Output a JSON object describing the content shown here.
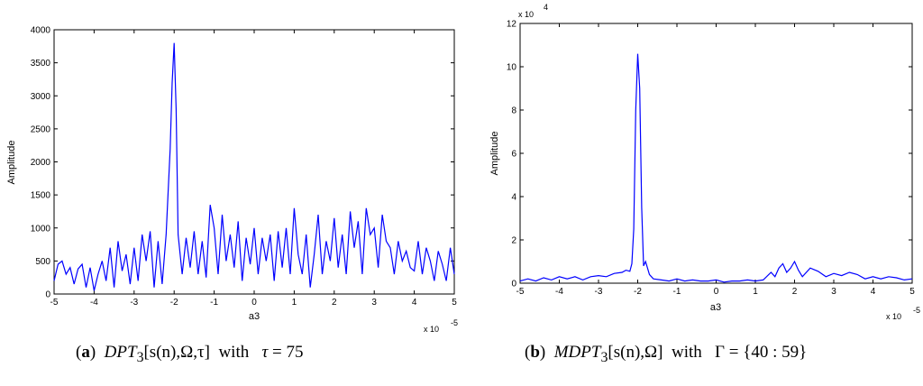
{
  "chart_data": [
    {
      "type": "line",
      "panel": "a",
      "xlabel": "a3",
      "ylabel": "Amplitude",
      "xlim": [
        -5,
        5
      ],
      "ylim": [
        0,
        4000
      ],
      "x_ticks": [
        -5,
        -4,
        -3,
        -2,
        -1,
        0,
        1,
        2,
        3,
        4,
        5
      ],
      "y_ticks": [
        0,
        500,
        1000,
        1500,
        2000,
        2500,
        3000,
        3500,
        4000
      ],
      "x_multiplier": "x 10",
      "x_exponent": "-5",
      "color": "#0000ff",
      "series": [
        {
          "name": "DPT3",
          "x": [
            -5.0,
            -4.9,
            -4.8,
            -4.7,
            -4.6,
            -4.5,
            -4.4,
            -4.3,
            -4.2,
            -4.1,
            -4.0,
            -3.9,
            -3.8,
            -3.7,
            -3.6,
            -3.5,
            -3.4,
            -3.3,
            -3.2,
            -3.1,
            -3.0,
            -2.9,
            -2.8,
            -2.7,
            -2.6,
            -2.5,
            -2.4,
            -2.3,
            -2.2,
            -2.1,
            -2.05,
            -2.0,
            -1.95,
            -1.9,
            -1.8,
            -1.7,
            -1.6,
            -1.5,
            -1.4,
            -1.3,
            -1.2,
            -1.1,
            -1.0,
            -0.9,
            -0.8,
            -0.7,
            -0.6,
            -0.5,
            -0.4,
            -0.3,
            -0.2,
            -0.1,
            0.0,
            0.1,
            0.2,
            0.3,
            0.4,
            0.5,
            0.6,
            0.7,
            0.8,
            0.9,
            1.0,
            1.1,
            1.2,
            1.3,
            1.4,
            1.5,
            1.6,
            1.7,
            1.8,
            1.9,
            2.0,
            2.1,
            2.2,
            2.3,
            2.4,
            2.5,
            2.6,
            2.7,
            2.8,
            2.9,
            3.0,
            3.1,
            3.2,
            3.3,
            3.4,
            3.5,
            3.6,
            3.7,
            3.8,
            3.9,
            4.0,
            4.1,
            4.2,
            4.3,
            4.4,
            4.5,
            4.6,
            4.7,
            4.8,
            4.9,
            5.0
          ],
          "y": [
            200,
            450,
            500,
            300,
            400,
            150,
            380,
            450,
            100,
            400,
            50,
            300,
            500,
            200,
            700,
            100,
            800,
            350,
            600,
            150,
            700,
            200,
            900,
            500,
            950,
            100,
            800,
            150,
            900,
            2200,
            3200,
            3800,
            2800,
            900,
            300,
            850,
            400,
            950,
            300,
            800,
            250,
            1350,
            1000,
            300,
            1200,
            500,
            900,
            400,
            1100,
            200,
            850,
            450,
            1000,
            300,
            850,
            500,
            900,
            200,
            950,
            400,
            1000,
            300,
            1300,
            600,
            300,
            900,
            100,
            600,
            1200,
            300,
            800,
            500,
            1150,
            400,
            900,
            300,
            1250,
            700,
            1100,
            300,
            1300,
            900,
            1000,
            400,
            1200,
            800,
            700,
            300,
            800,
            500,
            650,
            400,
            350,
            800,
            300,
            700,
            500,
            200,
            650,
            450,
            200,
            700,
            300
          ]
        }
      ]
    },
    {
      "type": "line",
      "panel": "b",
      "xlabel": "a3",
      "ylabel": "Amplitude",
      "xlim": [
        -5,
        5
      ],
      "ylim": [
        0,
        12
      ],
      "x_ticks": [
        -5,
        -4,
        -3,
        -2,
        -1,
        0,
        1,
        2,
        3,
        4,
        5
      ],
      "y_ticks": [
        0,
        2,
        4,
        6,
        8,
        10,
        12
      ],
      "x_multiplier": "x 10",
      "x_exponent": "-5",
      "y_multiplier": "x 10",
      "y_exponent": "4",
      "color": "#0000ff",
      "series": [
        {
          "name": "MDPT3",
          "x": [
            -5.0,
            -4.8,
            -4.6,
            -4.4,
            -4.2,
            -4.0,
            -3.8,
            -3.6,
            -3.4,
            -3.2,
            -3.0,
            -2.8,
            -2.6,
            -2.4,
            -2.3,
            -2.2,
            -2.15,
            -2.1,
            -2.05,
            -2.0,
            -1.95,
            -1.9,
            -1.85,
            -1.8,
            -1.7,
            -1.6,
            -1.4,
            -1.2,
            -1.0,
            -0.8,
            -0.6,
            -0.4,
            -0.2,
            0.0,
            0.2,
            0.4,
            0.6,
            0.8,
            1.0,
            1.2,
            1.4,
            1.5,
            1.6,
            1.7,
            1.8,
            1.9,
            2.0,
            2.1,
            2.2,
            2.4,
            2.6,
            2.8,
            3.0,
            3.2,
            3.4,
            3.6,
            3.8,
            4.0,
            4.2,
            4.4,
            4.6,
            4.8,
            5.0
          ],
          "y": [
            0.1,
            0.2,
            0.1,
            0.25,
            0.15,
            0.3,
            0.2,
            0.3,
            0.15,
            0.3,
            0.35,
            0.3,
            0.45,
            0.5,
            0.6,
            0.55,
            0.9,
            2.5,
            8.0,
            10.6,
            9.0,
            3.5,
            0.8,
            1.0,
            0.4,
            0.2,
            0.15,
            0.1,
            0.2,
            0.1,
            0.15,
            0.1,
            0.1,
            0.15,
            0.05,
            0.1,
            0.1,
            0.15,
            0.1,
            0.15,
            0.5,
            0.3,
            0.7,
            0.9,
            0.5,
            0.7,
            1.0,
            0.6,
            0.3,
            0.7,
            0.55,
            0.3,
            0.45,
            0.35,
            0.5,
            0.4,
            0.2,
            0.3,
            0.2,
            0.3,
            0.25,
            0.15,
            0.2
          ]
        }
      ]
    }
  ],
  "captions": {
    "a": {
      "tag": "a",
      "func": "DPT",
      "sub": "3",
      "args": "[s(n),Ω,τ]",
      "with": "with",
      "param": "τ",
      "eq": "= 75"
    },
    "b": {
      "tag": "b",
      "func": "MDPT",
      "sub": "3",
      "args": "[s(n),Ω]",
      "with": "with",
      "param": "Γ",
      "eq": "= {40 : 59}"
    }
  }
}
